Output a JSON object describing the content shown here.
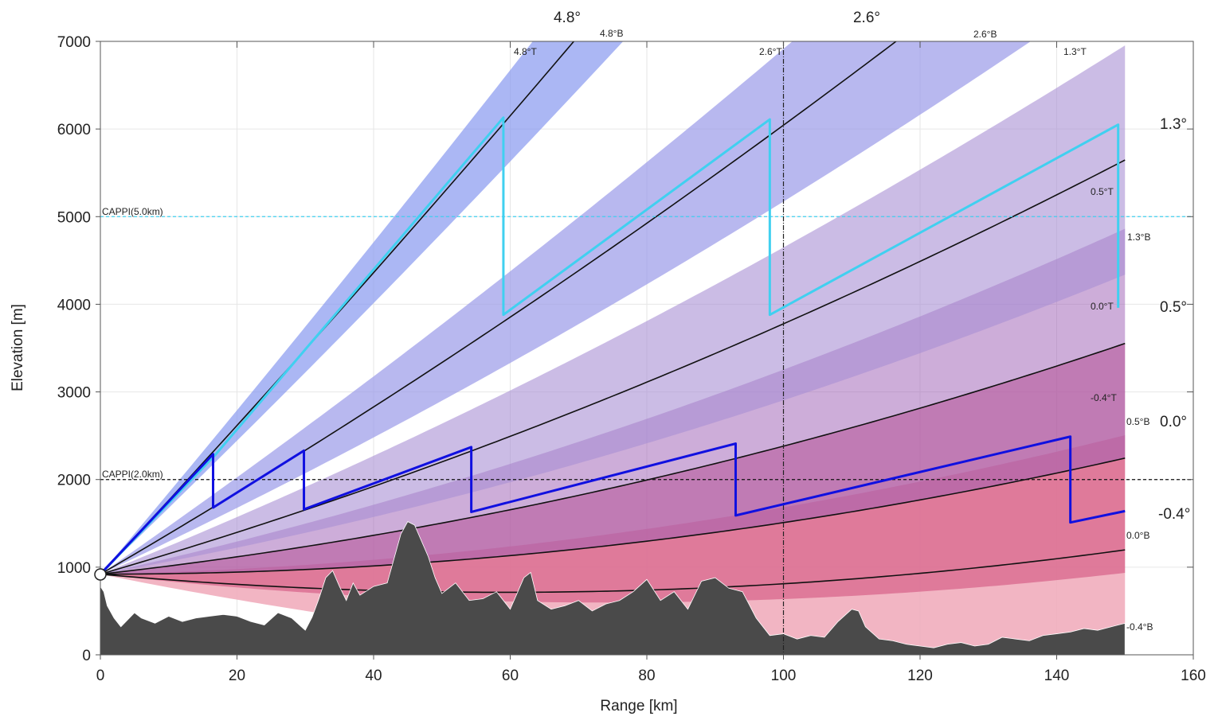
{
  "chart_data": {
    "type": "line",
    "title": "",
    "xlabel": "Range [km]",
    "ylabel": "Elevation [m]",
    "xlim": [
      0,
      160
    ],
    "ylim": [
      0,
      7000
    ],
    "xticks": [
      0,
      20,
      40,
      60,
      80,
      100,
      120,
      140,
      160
    ],
    "yticks": [
      0,
      1000,
      2000,
      3000,
      4000,
      5000,
      6000,
      7000
    ],
    "grid": true,
    "radar_height_m": 920,
    "max_range_km": 150,
    "beams": [
      {
        "elevation_deg": -0.4,
        "angle_label": "-0.4°",
        "top_label": "-0.4°T",
        "bottom_label": "-0.4°B",
        "color": "#f0a8b8",
        "opacity": 0.85
      },
      {
        "elevation_deg": 0.0,
        "angle_label": "0.0°",
        "top_label": "0.0°T",
        "bottom_label": "0.0°B",
        "color": "#d04878",
        "opacity": 0.55
      },
      {
        "elevation_deg": 0.5,
        "angle_label": "0.5°",
        "top_label": "0.5°T",
        "bottom_label": "0.5°B",
        "color": "#9c5cb4",
        "opacity": 0.5
      },
      {
        "elevation_deg": 1.3,
        "angle_label": "1.3°",
        "top_label": "1.3°T",
        "bottom_label": "1.3°B",
        "color": "#a890d4",
        "opacity": 0.6
      },
      {
        "elevation_deg": 2.6,
        "angle_label": "2.6°",
        "top_label": "2.6°T",
        "bottom_label": "2.6°B",
        "color": "#9a9ae8",
        "opacity": 0.7
      },
      {
        "elevation_deg": 4.8,
        "angle_label": "4.8°",
        "top_label": "4.8°T",
        "bottom_label": "4.8°B",
        "color": "#8898f0",
        "opacity": 0.7
      }
    ],
    "cappi": [
      {
        "label": "CAPPI(5.0km)",
        "height_m": 5000,
        "color": "#40d0f0"
      },
      {
        "label": "CAPPI(2.0km)",
        "height_m": 2000,
        "color": "#111111"
      }
    ],
    "cappi_5km_path": {
      "color": "#40d0f0",
      "points": [
        [
          0,
          920
        ],
        [
          16.8,
          2280
        ],
        [
          16.8,
          2280
        ],
        [
          59,
          6130
        ],
        [
          59,
          3880
        ],
        [
          98,
          6110
        ],
        [
          98,
          3880
        ],
        [
          149,
          6050
        ],
        [
          149,
          3960
        ]
      ]
    },
    "cappi_2km_path": {
      "color": "#1010e0",
      "points": [
        [
          0,
          920
        ],
        [
          16.5,
          2290
        ],
        [
          16.5,
          1680
        ],
        [
          29.8,
          2330
        ],
        [
          29.8,
          1660
        ],
        [
          54.3,
          2370
        ],
        [
          54.3,
          1630
        ],
        [
          93,
          2410
        ],
        [
          93,
          1590
        ],
        [
          142,
          2490
        ],
        [
          142,
          1510
        ],
        [
          150,
          1640
        ]
      ]
    },
    "reference_vertical_km": 100,
    "terrain": {
      "x": [
        0,
        0.5,
        1,
        2,
        3,
        4,
        5,
        6,
        8,
        10,
        12,
        14,
        16,
        18,
        20,
        22,
        24,
        26,
        28,
        30,
        31,
        32,
        33,
        34,
        35,
        36,
        37,
        38,
        40,
        42,
        43,
        44,
        45,
        46,
        47,
        48,
        49,
        50,
        52,
        54,
        56,
        58,
        60,
        62,
        63,
        64,
        66,
        68,
        70,
        72,
        74,
        76,
        78,
        80,
        82,
        84,
        86,
        88,
        90,
        92,
        94,
        96,
        98,
        100,
        102,
        104,
        106,
        108,
        110,
        111,
        112,
        114,
        116,
        118,
        120,
        122,
        124,
        126,
        128,
        130,
        132,
        134,
        136,
        138,
        140,
        142,
        144,
        146,
        148,
        150
      ],
      "y": [
        780,
        720,
        560,
        420,
        320,
        400,
        480,
        420,
        360,
        440,
        380,
        420,
        440,
        460,
        440,
        380,
        340,
        480,
        420,
        280,
        430,
        640,
        880,
        960,
        780,
        620,
        820,
        680,
        780,
        820,
        1100,
        1380,
        1520,
        1480,
        1300,
        1120,
        880,
        700,
        820,
        620,
        640,
        720,
        520,
        880,
        940,
        620,
        520,
        560,
        620,
        500,
        580,
        620,
        720,
        860,
        620,
        720,
        520,
        840,
        880,
        760,
        720,
        420,
        220,
        240,
        180,
        220,
        200,
        380,
        520,
        500,
        320,
        180,
        160,
        120,
        100,
        80,
        120,
        140,
        100,
        120,
        200,
        180,
        160,
        220,
        240,
        260,
        300,
        280,
        320,
        360
      ],
      "color": "#4a4a4a"
    }
  },
  "labels": {
    "angle_top_4_8": "4.8°",
    "angle_top_2_6": "2.6°",
    "angle_right_1_3": "1.3°",
    "angle_right_0_5": "0.5°",
    "angle_right_0_0": "0.0°",
    "angle_right_m0_4": "-0.4°",
    "b48T": "4.8°T",
    "b48B": "4.8°B",
    "b26T": "2.6°T",
    "b26B": "2.6°B",
    "b13T": "1.3°T",
    "b05T": "0.5°T",
    "b13B": "1.3°B",
    "b00T": "0.0°T",
    "bm04T": "-0.4°T",
    "b05B": "0.5°B",
    "b00B": "0.0°B",
    "bm04B": "-0.4°B"
  }
}
